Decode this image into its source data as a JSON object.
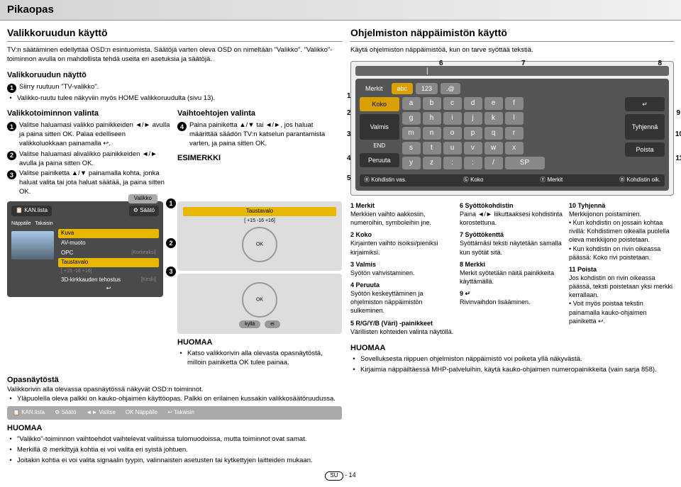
{
  "page_title": "Pikaopas",
  "left": {
    "section_title": "Valikkoruudun käyttö",
    "intro": "TV:n säätäminen edellyttää OSD:n esintuomista. Säätöjä varten oleva OSD on nimeltään \"Valikko\". \"Valikko\"-toiminnon avulla on mahdollista tehdä useita eri asetuksia ja säätöjä.",
    "sub_nayto_title": "Valikkoruudun näyttö",
    "nayto_1": "Siirry ruutuun \"TV-valikko\".",
    "nayto_1b": "Valikko-ruutu tulee näkyviin myös HOME valikkoruudulta (sivu 13).",
    "valinta_title": "Valikkotoiminnon valinta",
    "valinta_1a": "Valitse haluamasi valikko painikkeiden",
    "valinta_1b": "◄/► avulla ja paina sitten OK. Palaa edelliseen valikkoluokkaan painamalla ↩.",
    "valinta_2a": "Valitse haluamasi alivalikko painikkeiden",
    "valinta_2b": "◄/► avulla ja paina sitten OK.",
    "valinta_3a": "Valitse painiketta ▲/▼ painamalla kohta, jonka haluat valita tai jota haluat säätää, ja paina sitten OK.",
    "vaihto_title": "Vaihtoehtojen valinta",
    "vaihto_4a": "Paina painiketta ▲/▼ tai ◄/►, jos haluat määrittää säädön TV:n katselun parantamista varten, ja paina sitten OK.",
    "esimerkki_title": "ESIMERKKI",
    "menu": {
      "valikko": "Valikko",
      "kan": "KAN.lista",
      "saato": "Säätö",
      "nappaile": "Näppäile",
      "takaisin": "Takaisin",
      "kuva": "Kuva",
      "av": "AV-muoto",
      "opc": "OPC",
      "korkeaksi": "[Korkeaksi]",
      "tausta": "Taustavalo",
      "slider": "[ +15     -16              +16]",
      "threed": "3D-kirkkauden tehostus",
      "keski": "[Keski]"
    },
    "remote": {
      "tausta": "Taustavalo",
      "slider": "[ +15     -16              +16]",
      "kylla": "kyllä",
      "ei": "ei"
    },
    "huomaa_mid": "HUOMAA",
    "huomaa_mid_1": "Katso valikkorivin alla olevasta opasnäytöstä, milloin painiketta OK tulee painaa.",
    "opas_title": "Opasnäytöstä",
    "opas_1": "Valikkorivin alla olevassa opasnäytössä näkyvät OSD:n toiminnot.",
    "opas_2": "Yläpuolella oleva palkki on kauko-ohjaimen käyttöopas. Palkki on erilainen kussakin valikkosäätöruudussa.",
    "bar": {
      "kan": "KAN.lista",
      "saato": "Säätö",
      "valitse": "Valitse",
      "nappaile": "Näppäile",
      "takaisin": "Takaisin"
    },
    "huomaa_btm": "HUOMAA",
    "huomaa_btm_items": [
      "\"Valikko\"-toiminnon vaihtoehdot vaihtelevat valituissa tulomuodoissa, mutta toiminnot ovat samat.",
      "Merkillä ⊘ merkittyjä kohtia ei voi valita eri syistä johtuen.",
      "Joitakin kohtia ei voi valita signaalin tyypin, valinnaisten asetusten tai kytkettyjen laitteiden mukaan."
    ]
  },
  "right": {
    "section_title": "Ohjelmiston näppäimistön käyttö",
    "intro": "Käytä ohjelmiston näppäimistöä, kun on tarve syöttää tekstiä.",
    "osk": {
      "top_nums": [
        "6",
        "7",
        "8"
      ],
      "left_nums": [
        "1",
        "2",
        "3",
        "4",
        "5"
      ],
      "right_nums": [
        "9",
        "10",
        "11"
      ],
      "merkit": "Merkit",
      "tabs": [
        "abc",
        "123",
        ".@"
      ],
      "koko": "Koko",
      "valmis": "Valmis",
      "peruuta": "Peruuta",
      "row1": [
        "a",
        "b",
        "c",
        "d",
        "e",
        "f"
      ],
      "row2": [
        "g",
        "h",
        "i",
        "j",
        "k",
        "l"
      ],
      "row3": [
        "m",
        "n",
        "o",
        "p",
        "q",
        "r"
      ],
      "row4": [
        "s",
        "t",
        "u",
        "v",
        "w",
        "x"
      ],
      "row5": [
        "y",
        "z",
        ":",
        ":",
        "/",
        "."
      ],
      "end": "END",
      "enter": "↵",
      "tyhjenna": "Tyhjennä",
      "poista": "Poista",
      "sp": "SP",
      "bot": {
        "r": "Kohdistin vas.",
        "g": "Koko",
        "y": "Merkit",
        "b": "Kohdistin oik."
      }
    },
    "legend": [
      {
        "n": "1",
        "t": "Merkit",
        "d": "Merkkien vaihto aakkosiin, numeroihin, symboleihin jne."
      },
      {
        "n": "2",
        "t": "Koko",
        "d": "Kirjainten vaihto isoiksi/pieniksi kirjaimiksi."
      },
      {
        "n": "3",
        "t": "Valmis",
        "d": "Syötön vahvistaminen."
      },
      {
        "n": "4",
        "t": "Peruuta",
        "d": "Syötön keskeyttäminen ja ohjelmiston näppäimistön sulkeminen."
      },
      {
        "n": "5",
        "t": "R/G/Y/B (Väri) -painikkeet",
        "d": "Värillisten kohteiden valinta näytöllä."
      },
      {
        "n": "6",
        "t": "Syöttökohdistin",
        "d": "Paina ◄/► liikuttaaksesi kohdistinta korostettuna."
      },
      {
        "n": "7",
        "t": "Syöttökenttä",
        "d": "Syöttämäsi teksti näytetään samalla kun syötät sitä."
      },
      {
        "n": "8",
        "t": "Merkki",
        "d": "Merkit syötetään näitä painikkeita käyttämällä."
      },
      {
        "n": "9",
        "t": "↵",
        "d": "Rivinvaihdon lisääminen."
      },
      {
        "n": "10",
        "t": "Tyhjennä",
        "d": "Merkkijonon poistaminen.\n• Kun kohdistin on jossain kohtaa rivillä: Kohdistimen oikealla puolella oleva merkkijono poistetaan.\n• Kun kohdistin on rivin oikeassa päässä: Koko rivi poistetaan."
      },
      {
        "n": "11",
        "t": "Poista",
        "d": "Jos kohdistin on rivin oikeassa päässä, teksti poistetaan yksi merkki kerrallaan.\n• Voit myös poistaa tekstin painamalla kauko-ohjaimen painiketta ↩."
      }
    ],
    "huomaa": "HUOMAA",
    "huomaa_items": [
      "Sovelluksesta riippuen ohjelmiston näppäimistö voi poiketa yllä näkyvästä.",
      "Kirjaimia näppäiltäessä MHP-palveluihin, käytä kauko-ohjaimen numeropainikkeita (vain sarja 858)."
    ]
  },
  "footer_label": "SU",
  "footer_page": "- 14"
}
